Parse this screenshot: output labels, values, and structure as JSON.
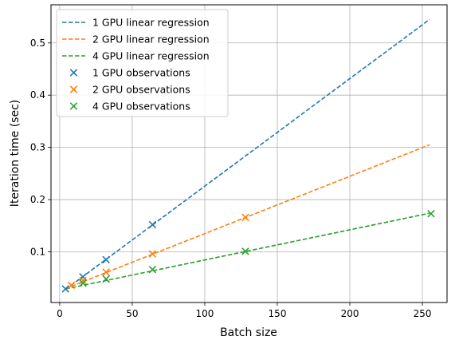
{
  "chart_data": {
    "type": "scatter",
    "title": "",
    "xlabel": "Batch size",
    "ylabel": "Iteration time (sec)",
    "xlim": [
      -6,
      267
    ],
    "ylim": [
      0.003,
      0.573
    ],
    "xticks": [
      0,
      50,
      100,
      150,
      200,
      250
    ],
    "yticks": [
      0.1,
      0.2,
      0.3,
      0.4,
      0.5
    ],
    "grid": true,
    "legend_position": "top-left",
    "series": [
      {
        "name": "1 GPU observations",
        "kind": "scatter",
        "marker": "x",
        "color": "#1f77b4",
        "x": [
          4,
          16,
          32,
          64
        ],
        "y": [
          0.029,
          0.052,
          0.085,
          0.152
        ]
      },
      {
        "name": "2 GPU observations",
        "kind": "scatter",
        "marker": "x",
        "color": "#ff7f0e",
        "x": [
          8,
          16,
          32,
          64,
          128
        ],
        "y": [
          0.036,
          0.045,
          0.061,
          0.096,
          0.166
        ]
      },
      {
        "name": "4 GPU observations",
        "kind": "scatter",
        "marker": "x",
        "color": "#2ca02c",
        "x": [
          16,
          32,
          64,
          128,
          256
        ],
        "y": [
          0.04,
          0.048,
          0.066,
          0.101,
          0.173
        ]
      },
      {
        "name": "1 GPU linear regression",
        "kind": "line",
        "dash": true,
        "color": "#1f77b4",
        "x": [
          4,
          255
        ],
        "y": [
          0.028,
          0.545
        ]
      },
      {
        "name": "2 GPU linear regression",
        "kind": "line",
        "dash": true,
        "color": "#ff7f0e",
        "x": [
          8,
          255
        ],
        "y": [
          0.034,
          0.305
        ]
      },
      {
        "name": "4 GPU linear regression",
        "kind": "line",
        "dash": true,
        "color": "#2ca02c",
        "x": [
          4,
          255
        ],
        "y": [
          0.029,
          0.174
        ]
      }
    ],
    "legend": [
      {
        "label": "1 GPU linear regression",
        "style": "line",
        "color": "#1f77b4"
      },
      {
        "label": "2 GPU linear regression",
        "style": "line",
        "color": "#ff7f0e"
      },
      {
        "label": "4 GPU linear regression",
        "style": "line",
        "color": "#2ca02c"
      },
      {
        "label": "1 GPU observations",
        "style": "marker",
        "color": "#1f77b4"
      },
      {
        "label": "2 GPU observations",
        "style": "marker",
        "color": "#ff7f0e"
      },
      {
        "label": "4 GPU observations",
        "style": "marker",
        "color": "#2ca02c"
      }
    ]
  }
}
